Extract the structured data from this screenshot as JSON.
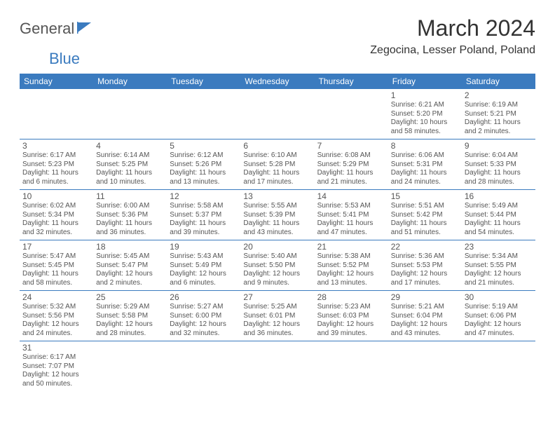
{
  "logo": {
    "text1": "General",
    "text2": "Blue"
  },
  "title": "March 2024",
  "location": "Zegocina, Lesser Poland, Poland",
  "colors": {
    "accent": "#3b7bbf",
    "text": "#555555",
    "bg": "#ffffff"
  },
  "headers": [
    "Sunday",
    "Monday",
    "Tuesday",
    "Wednesday",
    "Thursday",
    "Friday",
    "Saturday"
  ],
  "weeks": [
    [
      null,
      null,
      null,
      null,
      null,
      {
        "n": "1",
        "sr": "Sunrise: 6:21 AM",
        "ss": "Sunset: 5:20 PM",
        "d1": "Daylight: 10 hours",
        "d2": "and 58 minutes."
      },
      {
        "n": "2",
        "sr": "Sunrise: 6:19 AM",
        "ss": "Sunset: 5:21 PM",
        "d1": "Daylight: 11 hours",
        "d2": "and 2 minutes."
      }
    ],
    [
      {
        "n": "3",
        "sr": "Sunrise: 6:17 AM",
        "ss": "Sunset: 5:23 PM",
        "d1": "Daylight: 11 hours",
        "d2": "and 6 minutes."
      },
      {
        "n": "4",
        "sr": "Sunrise: 6:14 AM",
        "ss": "Sunset: 5:25 PM",
        "d1": "Daylight: 11 hours",
        "d2": "and 10 minutes."
      },
      {
        "n": "5",
        "sr": "Sunrise: 6:12 AM",
        "ss": "Sunset: 5:26 PM",
        "d1": "Daylight: 11 hours",
        "d2": "and 13 minutes."
      },
      {
        "n": "6",
        "sr": "Sunrise: 6:10 AM",
        "ss": "Sunset: 5:28 PM",
        "d1": "Daylight: 11 hours",
        "d2": "and 17 minutes."
      },
      {
        "n": "7",
        "sr": "Sunrise: 6:08 AM",
        "ss": "Sunset: 5:29 PM",
        "d1": "Daylight: 11 hours",
        "d2": "and 21 minutes."
      },
      {
        "n": "8",
        "sr": "Sunrise: 6:06 AM",
        "ss": "Sunset: 5:31 PM",
        "d1": "Daylight: 11 hours",
        "d2": "and 24 minutes."
      },
      {
        "n": "9",
        "sr": "Sunrise: 6:04 AM",
        "ss": "Sunset: 5:33 PM",
        "d1": "Daylight: 11 hours",
        "d2": "and 28 minutes."
      }
    ],
    [
      {
        "n": "10",
        "sr": "Sunrise: 6:02 AM",
        "ss": "Sunset: 5:34 PM",
        "d1": "Daylight: 11 hours",
        "d2": "and 32 minutes."
      },
      {
        "n": "11",
        "sr": "Sunrise: 6:00 AM",
        "ss": "Sunset: 5:36 PM",
        "d1": "Daylight: 11 hours",
        "d2": "and 36 minutes."
      },
      {
        "n": "12",
        "sr": "Sunrise: 5:58 AM",
        "ss": "Sunset: 5:37 PM",
        "d1": "Daylight: 11 hours",
        "d2": "and 39 minutes."
      },
      {
        "n": "13",
        "sr": "Sunrise: 5:55 AM",
        "ss": "Sunset: 5:39 PM",
        "d1": "Daylight: 11 hours",
        "d2": "and 43 minutes."
      },
      {
        "n": "14",
        "sr": "Sunrise: 5:53 AM",
        "ss": "Sunset: 5:41 PM",
        "d1": "Daylight: 11 hours",
        "d2": "and 47 minutes."
      },
      {
        "n": "15",
        "sr": "Sunrise: 5:51 AM",
        "ss": "Sunset: 5:42 PM",
        "d1": "Daylight: 11 hours",
        "d2": "and 51 minutes."
      },
      {
        "n": "16",
        "sr": "Sunrise: 5:49 AM",
        "ss": "Sunset: 5:44 PM",
        "d1": "Daylight: 11 hours",
        "d2": "and 54 minutes."
      }
    ],
    [
      {
        "n": "17",
        "sr": "Sunrise: 5:47 AM",
        "ss": "Sunset: 5:45 PM",
        "d1": "Daylight: 11 hours",
        "d2": "and 58 minutes."
      },
      {
        "n": "18",
        "sr": "Sunrise: 5:45 AM",
        "ss": "Sunset: 5:47 PM",
        "d1": "Daylight: 12 hours",
        "d2": "and 2 minutes."
      },
      {
        "n": "19",
        "sr": "Sunrise: 5:43 AM",
        "ss": "Sunset: 5:49 PM",
        "d1": "Daylight: 12 hours",
        "d2": "and 6 minutes."
      },
      {
        "n": "20",
        "sr": "Sunrise: 5:40 AM",
        "ss": "Sunset: 5:50 PM",
        "d1": "Daylight: 12 hours",
        "d2": "and 9 minutes."
      },
      {
        "n": "21",
        "sr": "Sunrise: 5:38 AM",
        "ss": "Sunset: 5:52 PM",
        "d1": "Daylight: 12 hours",
        "d2": "and 13 minutes."
      },
      {
        "n": "22",
        "sr": "Sunrise: 5:36 AM",
        "ss": "Sunset: 5:53 PM",
        "d1": "Daylight: 12 hours",
        "d2": "and 17 minutes."
      },
      {
        "n": "23",
        "sr": "Sunrise: 5:34 AM",
        "ss": "Sunset: 5:55 PM",
        "d1": "Daylight: 12 hours",
        "d2": "and 21 minutes."
      }
    ],
    [
      {
        "n": "24",
        "sr": "Sunrise: 5:32 AM",
        "ss": "Sunset: 5:56 PM",
        "d1": "Daylight: 12 hours",
        "d2": "and 24 minutes."
      },
      {
        "n": "25",
        "sr": "Sunrise: 5:29 AM",
        "ss": "Sunset: 5:58 PM",
        "d1": "Daylight: 12 hours",
        "d2": "and 28 minutes."
      },
      {
        "n": "26",
        "sr": "Sunrise: 5:27 AM",
        "ss": "Sunset: 6:00 PM",
        "d1": "Daylight: 12 hours",
        "d2": "and 32 minutes."
      },
      {
        "n": "27",
        "sr": "Sunrise: 5:25 AM",
        "ss": "Sunset: 6:01 PM",
        "d1": "Daylight: 12 hours",
        "d2": "and 36 minutes."
      },
      {
        "n": "28",
        "sr": "Sunrise: 5:23 AM",
        "ss": "Sunset: 6:03 PM",
        "d1": "Daylight: 12 hours",
        "d2": "and 39 minutes."
      },
      {
        "n": "29",
        "sr": "Sunrise: 5:21 AM",
        "ss": "Sunset: 6:04 PM",
        "d1": "Daylight: 12 hours",
        "d2": "and 43 minutes."
      },
      {
        "n": "30",
        "sr": "Sunrise: 5:19 AM",
        "ss": "Sunset: 6:06 PM",
        "d1": "Daylight: 12 hours",
        "d2": "and 47 minutes."
      }
    ],
    [
      {
        "n": "31",
        "sr": "Sunrise: 6:17 AM",
        "ss": "Sunset: 7:07 PM",
        "d1": "Daylight: 12 hours",
        "d2": "and 50 minutes."
      },
      null,
      null,
      null,
      null,
      null,
      null
    ]
  ]
}
